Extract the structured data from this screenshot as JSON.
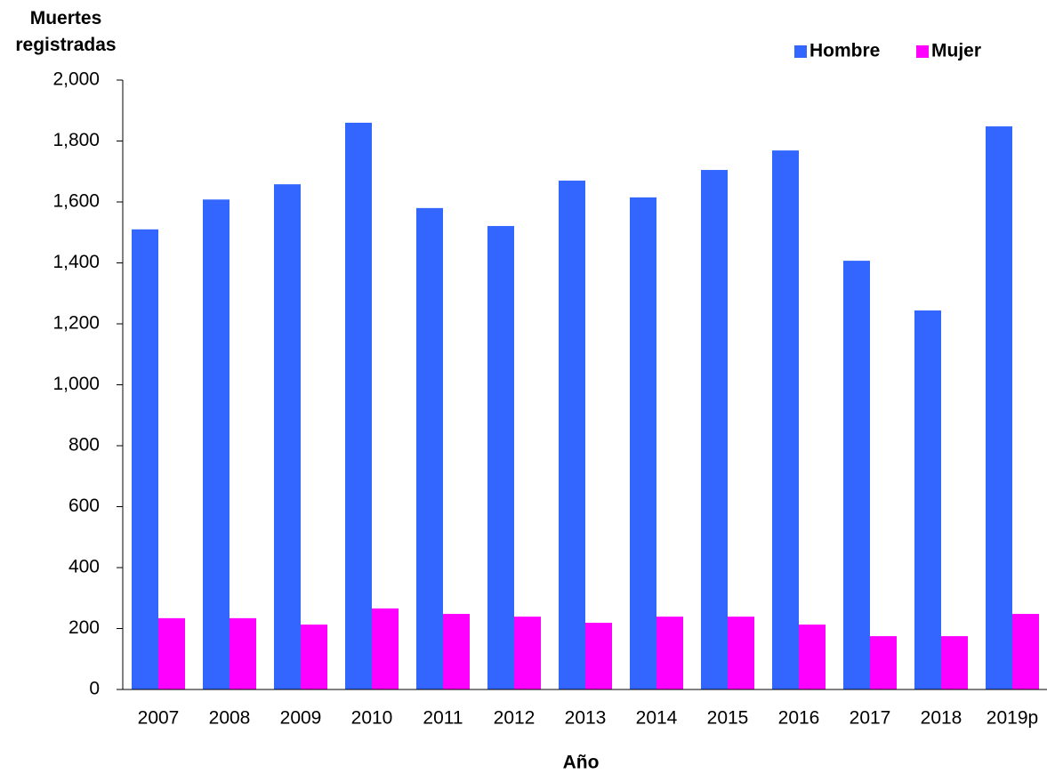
{
  "chart_data": {
    "type": "bar",
    "y_label": "Muertes registradas",
    "x_label": "Año",
    "categories": [
      "2007",
      "2008",
      "2009",
      "2010",
      "2011",
      "2012",
      "2013",
      "2014",
      "2015",
      "2016",
      "2017",
      "2018",
      "2019p"
    ],
    "series": [
      {
        "name": "Hombre",
        "color": "#3366ff",
        "values": [
          1510,
          1608,
          1658,
          1860,
          1580,
          1521,
          1670,
          1615,
          1705,
          1769,
          1407,
          1244,
          1848
        ]
      },
      {
        "name": "Mujer",
        "color": "#ff00ff",
        "values": [
          234,
          234,
          213,
          266,
          248,
          239,
          219,
          239,
          239,
          213,
          175,
          175,
          248
        ]
      }
    ],
    "ylim": [
      0,
      2000
    ],
    "yticks": [
      0,
      200,
      400,
      600,
      800,
      {
        "value": 1000,
        "label": "1,000"
      },
      {
        "value": 1200,
        "label": "1,200"
      },
      {
        "value": 1400,
        "label": "1,400"
      },
      {
        "value": 1600,
        "label": "1,600"
      },
      {
        "value": 1800,
        "label": "1,800"
      },
      {
        "value": 2000,
        "label": "2,000"
      }
    ],
    "legend": "top-right",
    "grid": false
  }
}
